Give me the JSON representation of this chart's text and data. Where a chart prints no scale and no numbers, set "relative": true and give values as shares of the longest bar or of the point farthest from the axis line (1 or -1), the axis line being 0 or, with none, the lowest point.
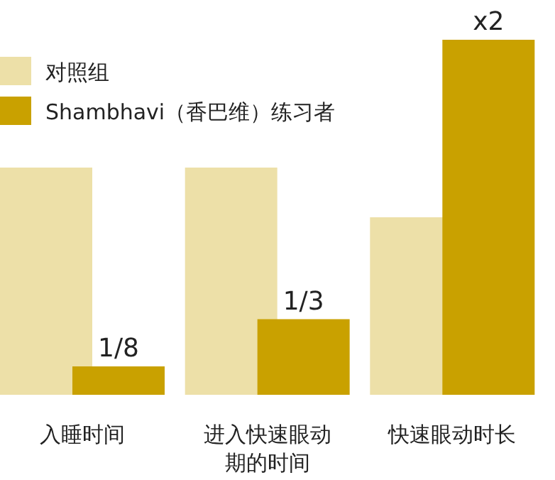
{
  "chart_data": {
    "type": "bar",
    "relative": true,
    "legend": "top left",
    "categories": [
      "入睡时间",
      "进入快速眼动期的时间",
      "快速眼动时长"
    ],
    "series": [
      {
        "name": "对照组",
        "color": "#ede0a8",
        "values": [
          0.64,
          0.64,
          0.5
        ]
      },
      {
        "name": "Shambhavi（香巴维）练习者",
        "color": "#c9a100",
        "values": [
          0.08,
          0.213,
          1.0
        ]
      }
    ],
    "annotations": [
      {
        "text": "1/8",
        "x": "入睡时间",
        "y": 0.08
      },
      {
        "text": "1/3",
        "x": "进入快速眼动期的时间",
        "y": 0.213
      },
      {
        "text": "x2",
        "x": "快速眼动时长",
        "y": 1.0
      }
    ]
  }
}
